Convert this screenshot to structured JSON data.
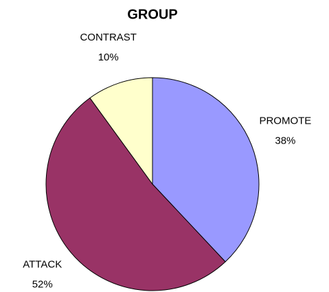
{
  "chart_data": {
    "type": "pie",
    "title": "GROUP",
    "categories": [
      "PROMOTE",
      "ATTACK",
      "CONTRAST"
    ],
    "values": [
      38,
      52,
      10
    ],
    "value_labels": [
      "38%",
      "52%",
      "10%"
    ],
    "colors": [
      "#9999ff",
      "#993366",
      "#ffffcc"
    ]
  }
}
